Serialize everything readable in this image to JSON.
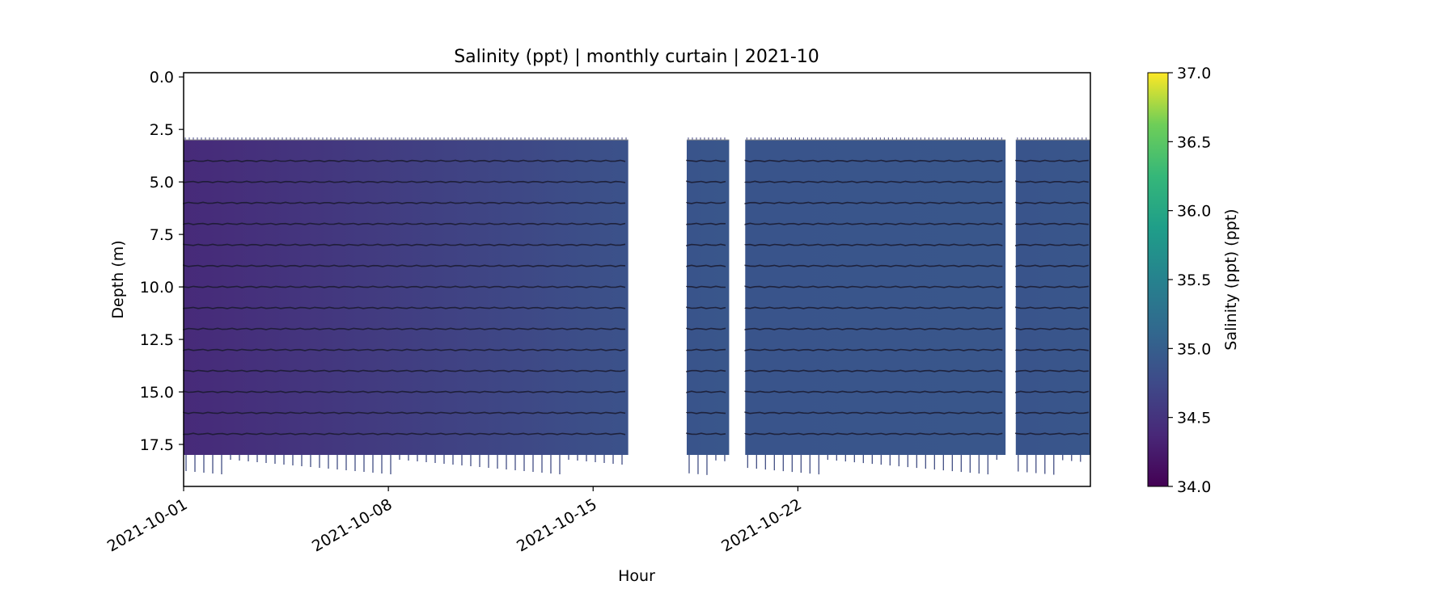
{
  "chart_data": {
    "type": "heatmap",
    "title": "Salinity (ppt) | monthly curtain | 2021-10",
    "xlabel": "Hour",
    "ylabel": "Depth (m)",
    "x_range": [
      "2021-10-01",
      "2021-11-01"
    ],
    "x_ticks": [
      "2021-10-01",
      "2021-10-08",
      "2021-10-15",
      "2021-10-22"
    ],
    "ylim": [
      19.5,
      -0.2
    ],
    "y_ticks": [
      0.0,
      2.5,
      5.0,
      7.5,
      10.0,
      12.5,
      15.0,
      17.5
    ],
    "y_tick_labels": [
      "0.0",
      "2.5",
      "5.0",
      "7.5",
      "10.0",
      "12.5",
      "15.0",
      "17.5"
    ],
    "grid": false,
    "colorbar": {
      "label": "Salinity (ppt) (ppt)",
      "colormap": "viridis",
      "range": [
        34.0,
        37.0
      ],
      "ticks": [
        34.0,
        34.5,
        35.0,
        35.5,
        36.0,
        36.5,
        37.0
      ],
      "tick_labels": [
        "34.0",
        "34.5",
        "35.0",
        "35.5",
        "36.0",
        "36.5",
        "37.0"
      ]
    },
    "data_segments": [
      {
        "start": "2021-10-01",
        "end": "2021-10-16.2",
        "salinity_start": 34.4,
        "salinity_end": 34.85
      },
      {
        "start": "2021-10-18.2",
        "end": "2021-10-19.65",
        "salinity_start": 34.88,
        "salinity_end": 34.9
      },
      {
        "start": "2021-10-20.2",
        "end": "2021-10-29.1",
        "salinity_start": 34.88,
        "salinity_end": 34.9
      },
      {
        "start": "2021-10-29.45",
        "end": "2021-11-01",
        "salinity_start": 34.88,
        "salinity_end": 34.9
      }
    ],
    "data_depth_range": [
      3.0,
      18.0
    ],
    "sensor_depths": [
      3,
      4,
      5,
      6,
      7,
      8,
      9,
      10,
      11,
      12,
      13,
      14,
      15,
      16,
      17
    ],
    "colors": {
      "low": "#440154",
      "mid": "#3b528b",
      "high": "#fde725",
      "sensor_line": "#1a1a2e"
    }
  }
}
